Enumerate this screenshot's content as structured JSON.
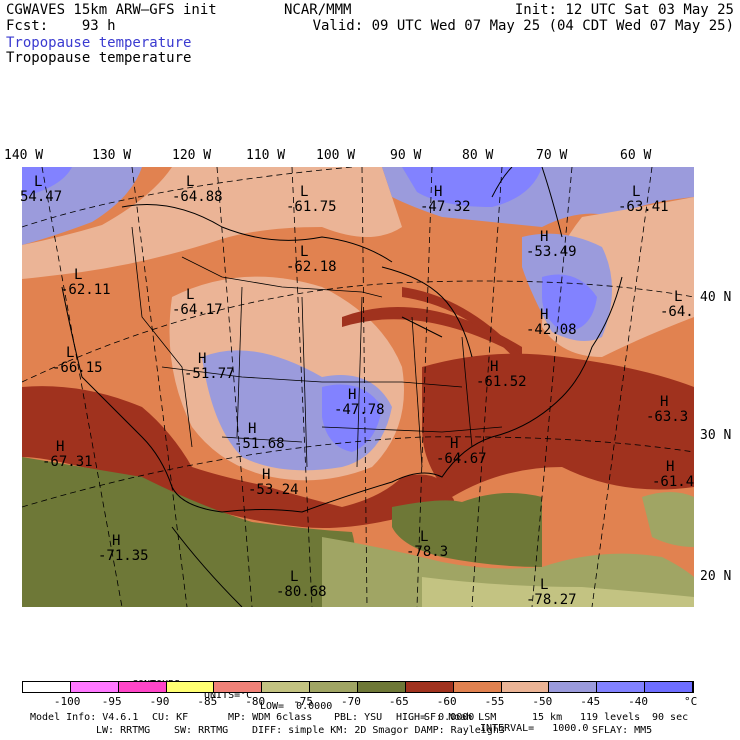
{
  "header": {
    "title": "CGWAVES 15km ARW–GFS init",
    "fcst": "Fcst:    93 h",
    "center": "NCAR/MMM",
    "init": "Init: 12 UTC Sat 03 May 25",
    "valid": "Valid: 09 UTC Wed 07 May 25 (04 CDT Wed 07 May 25)",
    "field_title": "Tropopause temperature",
    "field_title2": "Tropopause temperature"
  },
  "lon_labels": [
    "140 W",
    "130 W",
    "120 W",
    "110 W",
    "100 W",
    "90 W",
    "80 W",
    "70 W",
    "60 W"
  ],
  "lat_labels": [
    "40 N",
    "30 N",
    "20 N"
  ],
  "map_labels": [
    {
      "type": "L",
      "value": "54.47"
    },
    {
      "type": "L",
      "value": "-64.88"
    },
    {
      "type": "L",
      "value": "-61.75"
    },
    {
      "type": "H",
      "value": "-47.32"
    },
    {
      "type": "L",
      "value": "-63.41"
    },
    {
      "type": "L",
      "value": "-62.18"
    },
    {
      "type": "H",
      "value": "-53.49"
    },
    {
      "type": "L",
      "value": "-62.11"
    },
    {
      "type": "L",
      "value": "-64.17"
    },
    {
      "type": "H",
      "value": "-42.08"
    },
    {
      "type": "L",
      "value": "-64."
    },
    {
      "type": "L",
      "value": "-66.15"
    },
    {
      "type": "H",
      "value": "-51.77"
    },
    {
      "type": "H",
      "value": "-47.78"
    },
    {
      "type": "H",
      "value": "-61.52"
    },
    {
      "type": "H",
      "value": "-63.3"
    },
    {
      "type": "H",
      "value": "-51.68"
    },
    {
      "type": "H",
      "value": "-67.31"
    },
    {
      "type": "H",
      "value": "-64.67"
    },
    {
      "type": "H",
      "value": "-53.24"
    },
    {
      "type": "H",
      "value": "-61.4"
    },
    {
      "type": "H",
      "value": "-71.35"
    },
    {
      "type": "L",
      "value": "-78.3"
    },
    {
      "type": "L",
      "value": "-80.68"
    },
    {
      "type": "L",
      "value": "-78.27"
    }
  ],
  "contours": {
    "label": "CONTOURS:",
    "units": "UNITS=°C",
    "low": "LOW=  0.0000",
    "high": "HIGH=  0.0000",
    "interval": "INTERVAL=   1000.0"
  },
  "scale": {
    "colors": [
      "#ffffff",
      "#ff78ff",
      "#ff46c8",
      "#ffff73",
      "#f08278",
      "#c3c382",
      "#a0a564",
      "#6e7837",
      "#a0321e",
      "#e18250",
      "#ebb496",
      "#9b9bdc",
      "#8282ff",
      "#6e6eff"
    ],
    "ticks": [
      "-100",
      "-95",
      "-90",
      "-85",
      "-80",
      "-75",
      "-70",
      "-65",
      "-60",
      "-55",
      "-50",
      "-45",
      "-40",
      "°C"
    ]
  },
  "footer": {
    "line1": [
      "Model Info: V4.6.1",
      "CU: KF",
      "MP: WDM 6class",
      "PBL: YSU",
      "SF: Noah LSM",
      "15 km",
      "119 levels",
      "90 sec"
    ],
    "line2": [
      "LW: RRTMG",
      "SW: RRTMG",
      "DIFF: simple KM: 2D Smagor DAMP: Rayleigh3",
      "SFLAY: MM5"
    ]
  }
}
